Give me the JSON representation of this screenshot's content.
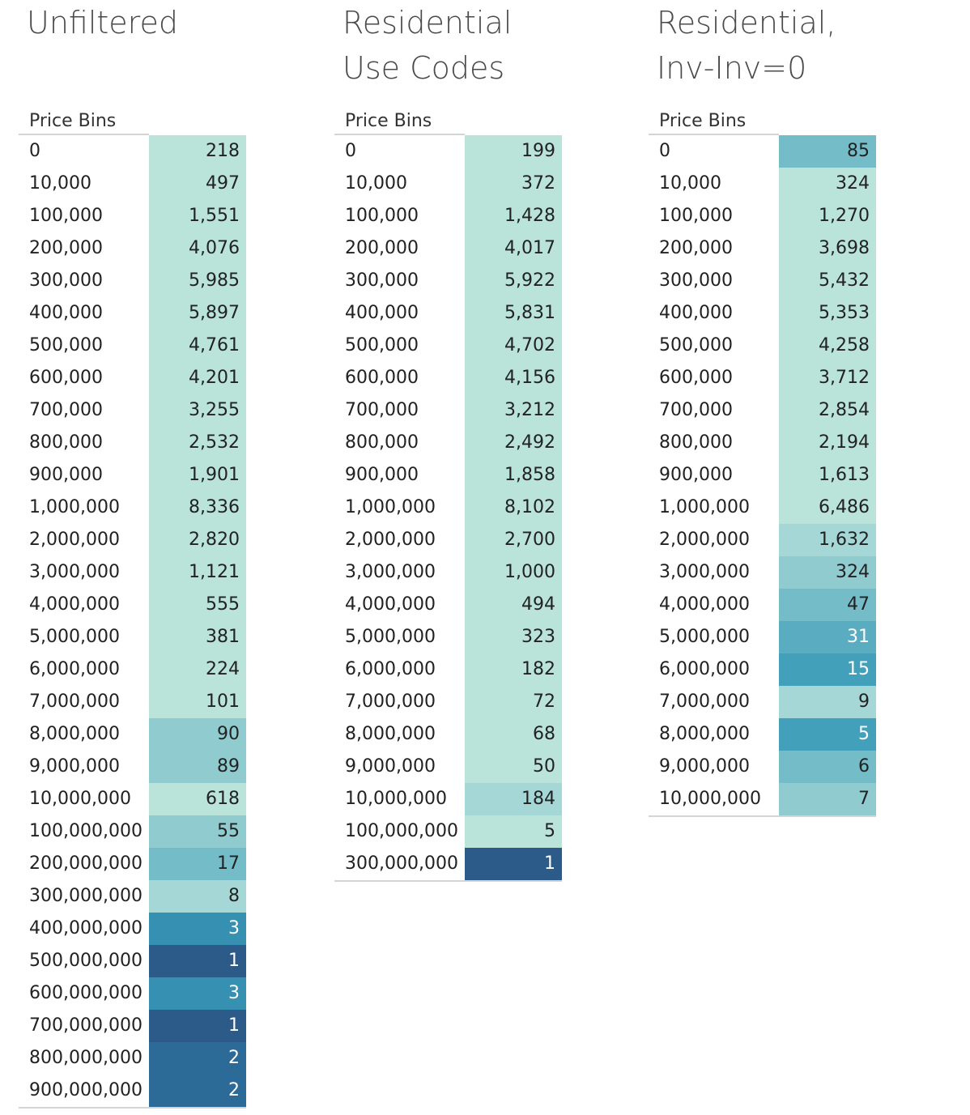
{
  "colors": {
    "scale": [
      "#bae4da",
      "#a6d7d7",
      "#8fcbcf",
      "#74bcc8",
      "#5aacc1",
      "#43a0bb",
      "#3690b2",
      "#2f7ba4",
      "#2c6a98",
      "#2c5a89"
    ]
  },
  "chart_data": [
    {
      "type": "table",
      "title": "Unfiltered",
      "column_header": "Price Bins",
      "color_max": 8,
      "rows": [
        {
          "bin": "0",
          "count": 218,
          "label": "218"
        },
        {
          "bin": "10,000",
          "count": 497,
          "label": "497"
        },
        {
          "bin": "100,000",
          "count": 1551,
          "label": "1,551"
        },
        {
          "bin": "200,000",
          "count": 4076,
          "label": "4,076"
        },
        {
          "bin": "300,000",
          "count": 5985,
          "label": "5,985"
        },
        {
          "bin": "400,000",
          "count": 5897,
          "label": "5,897"
        },
        {
          "bin": "500,000",
          "count": 4761,
          "label": "4,761"
        },
        {
          "bin": "600,000",
          "count": 4201,
          "label": "4,201"
        },
        {
          "bin": "700,000",
          "count": 3255,
          "label": "3,255"
        },
        {
          "bin": "800,000",
          "count": 2532,
          "label": "2,532"
        },
        {
          "bin": "900,000",
          "count": 1901,
          "label": "1,901"
        },
        {
          "bin": "1,000,000",
          "count": 8336,
          "label": "8,336"
        },
        {
          "bin": "2,000,000",
          "count": 2820,
          "label": "2,820"
        },
        {
          "bin": "3,000,000",
          "count": 1121,
          "label": "1,121"
        },
        {
          "bin": "4,000,000",
          "count": 555,
          "label": "555"
        },
        {
          "bin": "5,000,000",
          "count": 381,
          "label": "381"
        },
        {
          "bin": "6,000,000",
          "count": 224,
          "label": "224"
        },
        {
          "bin": "7,000,000",
          "count": 101,
          "label": "101"
        },
        {
          "bin": "8,000,000",
          "count": 90,
          "label": "90"
        },
        {
          "bin": "9,000,000",
          "count": 89,
          "label": "89"
        },
        {
          "bin": "10,000,000",
          "count": 618,
          "label": "618"
        },
        {
          "bin": "100,000,000",
          "count": 55,
          "label": "55"
        },
        {
          "bin": "200,000,000",
          "count": 17,
          "label": "17"
        },
        {
          "bin": "300,000,000",
          "count": 8,
          "label": "8"
        },
        {
          "bin": "400,000,000",
          "count": 3,
          "label": "3"
        },
        {
          "bin": "500,000,000",
          "count": 1,
          "label": "1"
        },
        {
          "bin": "600,000,000",
          "count": 3,
          "label": "3"
        },
        {
          "bin": "700,000,000",
          "count": 1,
          "label": "1"
        },
        {
          "bin": "800,000,000",
          "count": 2,
          "label": "2"
        },
        {
          "bin": "900,000,000",
          "count": 2,
          "label": "2"
        }
      ]
    },
    {
      "type": "table",
      "title": "Residential\nUse Codes",
      "column_header": "Price Bins",
      "color_max": 2,
      "rows": [
        {
          "bin": "0",
          "count": 199,
          "label": "199"
        },
        {
          "bin": "10,000",
          "count": 372,
          "label": "372"
        },
        {
          "bin": "100,000",
          "count": 1428,
          "label": "1,428"
        },
        {
          "bin": "200,000",
          "count": 4017,
          "label": "4,017"
        },
        {
          "bin": "300,000",
          "count": 5922,
          "label": "5,922"
        },
        {
          "bin": "400,000",
          "count": 5831,
          "label": "5,831"
        },
        {
          "bin": "500,000",
          "count": 4702,
          "label": "4,702"
        },
        {
          "bin": "600,000",
          "count": 4156,
          "label": "4,156"
        },
        {
          "bin": "700,000",
          "count": 3212,
          "label": "3,212"
        },
        {
          "bin": "800,000",
          "count": 2492,
          "label": "2,492"
        },
        {
          "bin": "900,000",
          "count": 1858,
          "label": "1,858"
        },
        {
          "bin": "1,000,000",
          "count": 8102,
          "label": "8,102"
        },
        {
          "bin": "2,000,000",
          "count": 2700,
          "label": "2,700"
        },
        {
          "bin": "3,000,000",
          "count": 1000,
          "label": "1,000"
        },
        {
          "bin": "4,000,000",
          "count": 494,
          "label": "494"
        },
        {
          "bin": "5,000,000",
          "count": 323,
          "label": "323"
        },
        {
          "bin": "6,000,000",
          "count": 182,
          "label": "182"
        },
        {
          "bin": "7,000,000",
          "count": 72,
          "label": "72"
        },
        {
          "bin": "8,000,000",
          "count": 68,
          "label": "68"
        },
        {
          "bin": "9,000,000",
          "count": 50,
          "label": "50"
        },
        {
          "bin": "10,000,000",
          "count": 184,
          "label": "184"
        },
        {
          "bin": "100,000,000",
          "count": 5,
          "label": "5"
        },
        {
          "bin": "300,000,000",
          "count": 1,
          "label": "1"
        }
      ]
    },
    {
      "type": "table",
      "title": "Residential,\nInv-Inv=0",
      "column_header": "Price Bins",
      "color_max": 9,
      "rows": [
        {
          "bin": "0",
          "count": 85,
          "label": "85"
        },
        {
          "bin": "10,000",
          "count": 324,
          "label": "324"
        },
        {
          "bin": "100,000",
          "count": 1270,
          "label": "1,270"
        },
        {
          "bin": "200,000",
          "count": 3698,
          "label": "3,698"
        },
        {
          "bin": "300,000",
          "count": 5432,
          "label": "5,432"
        },
        {
          "bin": "400,000",
          "count": 5353,
          "label": "5,353"
        },
        {
          "bin": "500,000",
          "count": 4258,
          "label": "4,258"
        },
        {
          "bin": "600,000",
          "count": 3712,
          "label": "3,712"
        },
        {
          "bin": "700,000",
          "count": 2854,
          "label": "2,854"
        },
        {
          "bin": "800,000",
          "count": 2194,
          "label": "2,194"
        },
        {
          "bin": "900,000",
          "count": 1613,
          "label": "1,613"
        },
        {
          "bin": "1,000,000",
          "count": 6486,
          "label": "6,486"
        },
        {
          "bin": "2,000,000",
          "count": 1632,
          "label": "1,632"
        },
        {
          "bin": "3,000,000",
          "count": 324,
          "label": "324"
        },
        {
          "bin": "4,000,000",
          "count": 47,
          "label": "47"
        },
        {
          "bin": "5,000,000",
          "count": 31,
          "label": "31"
        },
        {
          "bin": "6,000,000",
          "count": 15,
          "label": "15"
        },
        {
          "bin": "7,000,000",
          "count": 9,
          "label": "9"
        },
        {
          "bin": "8,000,000",
          "count": 5,
          "label": "5"
        },
        {
          "bin": "9,000,000",
          "count": 6,
          "label": "6"
        },
        {
          "bin": "10,000,000",
          "count": 7,
          "label": "7"
        }
      ]
    }
  ]
}
